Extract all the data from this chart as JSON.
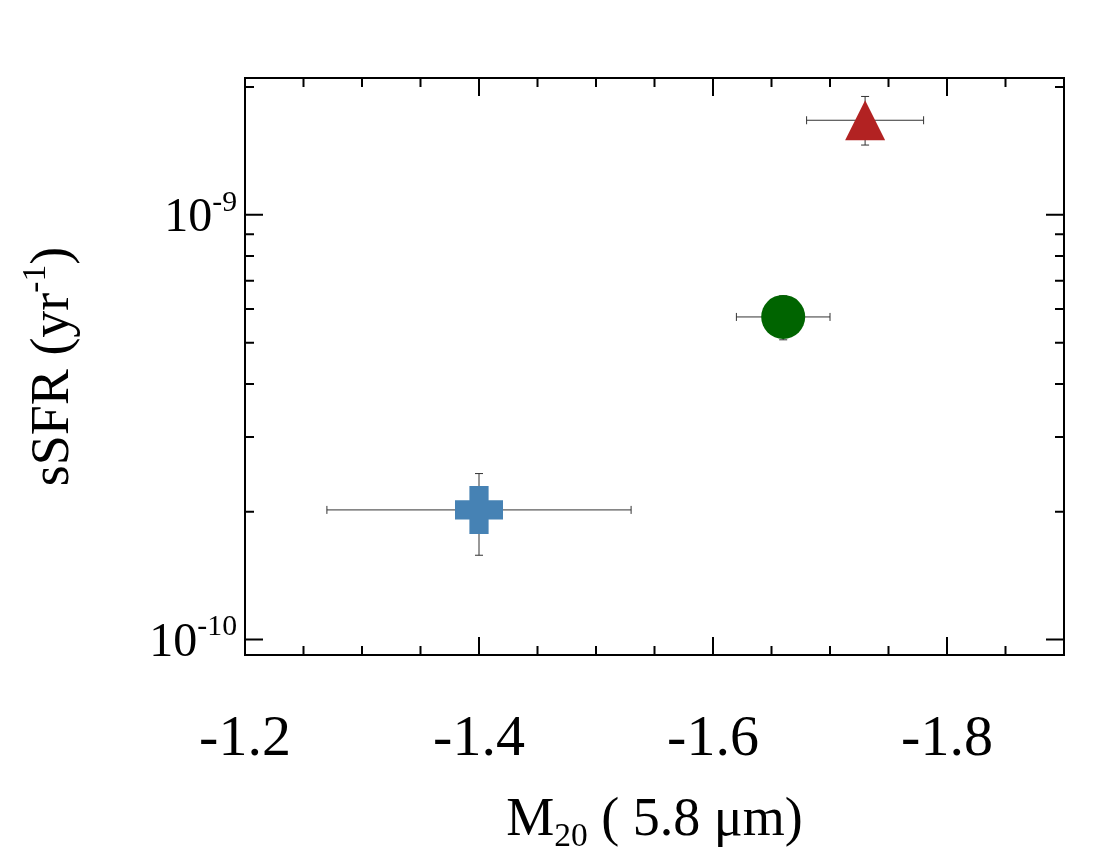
{
  "chart_data": {
    "type": "scatter",
    "xlabel": "M$_{20}$ ( 5.8 μm)",
    "ylabel": "sSFR (yr$^{-1}$)",
    "xlim": [
      -1.2,
      -1.9
    ],
    "ylim": [
      9.2e-11,
      2.1e-09
    ],
    "log": "y",
    "grid": false,
    "legend": false,
    "xticks": [
      -1.2,
      {
        "value": -1.25,
        "label": null
      },
      {
        "value": -1.3,
        "label": null
      },
      {
        "value": -1.35,
        "label": null
      },
      -1.4,
      {
        "value": -1.45,
        "label": null
      },
      {
        "value": -1.5,
        "label": null
      },
      {
        "value": -1.55,
        "label": null
      },
      -1.6,
      {
        "value": -1.65,
        "label": null
      },
      {
        "value": -1.7,
        "label": null
      },
      {
        "value": -1.75,
        "label": null
      },
      -1.8,
      {
        "value": -1.85,
        "label": null
      }
    ],
    "yticks": [
      {
        "value": 1e-10,
        "label": "10$^{-10}$"
      },
      {
        "value": 2e-10,
        "label": null
      },
      {
        "value": 3e-10,
        "label": null
      },
      {
        "value": 4e-10,
        "label": null
      },
      {
        "value": 5e-10,
        "label": null
      },
      {
        "value": 6e-10,
        "label": null
      },
      {
        "value": 7e-10,
        "label": null
      },
      {
        "value": 8e-10,
        "label": null
      },
      {
        "value": 9e-10,
        "label": null
      },
      {
        "value": 1e-09,
        "label": "10$^{-9}$"
      },
      {
        "value": 2e-09,
        "label": null
      }
    ],
    "series": [
      {
        "color": "#4682b4",
        "marker": "cross",
        "x": [
          -1.4
        ],
        "values": [
          2.02e-10
        ],
        "errors": [
          [
            1.58e-10,
            2.46e-10
          ]
        ],
        "xerrors": [
          [
            -1.53,
            -1.27
          ]
        ]
      },
      {
        "color": "#006400",
        "marker": "circle",
        "x": [
          -1.66
        ],
        "values": [
          5.75e-10
        ],
        "errors": [
          [
            5.08e-10,
            6.45e-10
          ]
        ],
        "xerrors": [
          0.04
        ]
      },
      {
        "color": "#b22222",
        "marker": "triangle",
        "x": [
          -1.73
        ],
        "values": [
          1.67e-09
        ],
        "errors": [
          [
            1.46e-09,
            1.9e-09
          ]
        ],
        "xerrors": [
          0.05
        ]
      }
    ]
  }
}
